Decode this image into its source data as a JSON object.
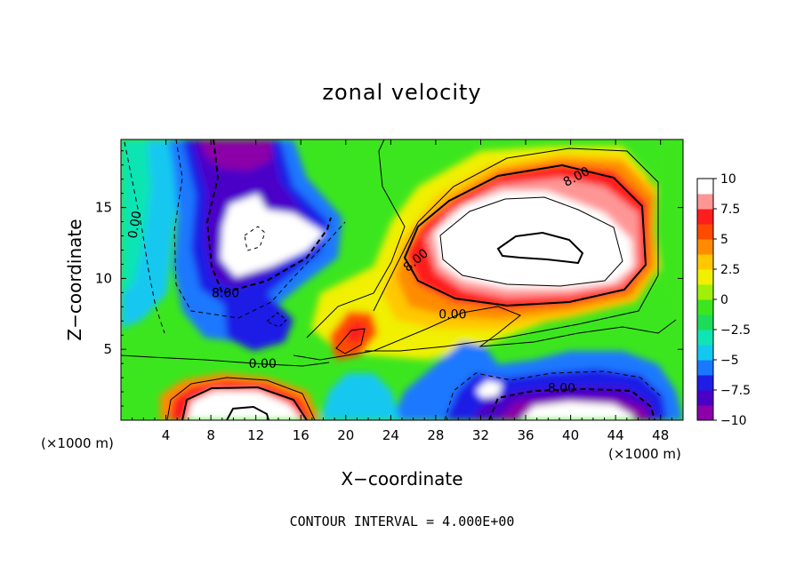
{
  "chart_data": {
    "type": "heatmap",
    "title": "zonal velocity",
    "xlabel": "X−coordinate",
    "ylabel": "Z−coordinate",
    "x_unit_label": "(×1000 m)",
    "x_unit_label_right": "(×1000 m)",
    "x_ticks": [
      "4",
      "8",
      "12",
      "16",
      "20",
      "24",
      "28",
      "32",
      "36",
      "40",
      "44",
      "48"
    ],
    "y_ticks": [
      "5",
      "10",
      "15"
    ],
    "xlim": [
      0,
      50
    ],
    "ylim": [
      0,
      19.8
    ],
    "colorbar": {
      "ticks": [
        "10",
        "7.5",
        "5",
        "2.5",
        "0",
        "−2.5",
        "−5",
        "−7.5",
        "−10"
      ],
      "range": [
        -10,
        10
      ],
      "colors": [
        "#8b00a8",
        "#4b00c8",
        "#1e1ee6",
        "#1a78ff",
        "#13c8f0",
        "#10e4b4",
        "#1edc5a",
        "#3ce61e",
        "#a0f00a",
        "#f0f000",
        "#ffc800",
        "#ff8c00",
        "#ff4b00",
        "#ff1e1e",
        "#ff9696",
        "#ffffff"
      ]
    },
    "contour_labels": [
      {
        "text": "8.00",
        "x": 40.5,
        "y": 17.2,
        "angle": 28
      },
      {
        "text": "0.00",
        "x": 1.2,
        "y": 13.8,
        "angle": 80
      },
      {
        "text": "8.00",
        "x": 9.3,
        "y": 9.0,
        "angle": 0
      },
      {
        "text": "8.00",
        "x": 26.2,
        "y": 11.3,
        "angle": 40
      },
      {
        "text": "0.00",
        "x": 29.5,
        "y": 7.5,
        "angle": 0
      },
      {
        "text": "0.00",
        "x": 12.6,
        "y": 4.0,
        "angle": 0
      },
      {
        "text": "8.00",
        "x": 39.2,
        "y": 2.3,
        "angle": 0
      }
    ],
    "features": [
      {
        "label": "northeast jet core",
        "cx": 38,
        "cy": 12.5,
        "rx": 9.5,
        "ry": 4.3,
        "value": 14
      },
      {
        "label": "northwest negative region",
        "cx": 12,
        "cy": 12.5,
        "rx": 4.5,
        "ry": 3.6,
        "value": -14
      },
      {
        "label": "top-left negative tongue",
        "cx": 10.5,
        "cy": 19.5,
        "rx": 4.5,
        "ry": 2.0,
        "value": -10
      },
      {
        "label": "southwest surface jet",
        "cx": 11.5,
        "cy": 0.2,
        "rx": 5.5,
        "ry": 2.2,
        "value": 14
      },
      {
        "label": "southeast surface negative",
        "cx": 41,
        "cy": 0.8,
        "rx": 7.0,
        "ry": 2.0,
        "value": -14
      },
      {
        "label": "small positive cell",
        "cx": 20.7,
        "cy": 5.8,
        "rx": 1.6,
        "ry": 1.2,
        "value": 8
      },
      {
        "label": "small negative cell",
        "cx": 32.5,
        "cy": 2.0,
        "rx": 1.0,
        "ry": 0.8,
        "value": -12
      }
    ],
    "grid": false,
    "legend": "colorbar right"
  },
  "footer": {
    "contour_interval": "CONTOUR INTERVAL = 4.000E+00"
  }
}
